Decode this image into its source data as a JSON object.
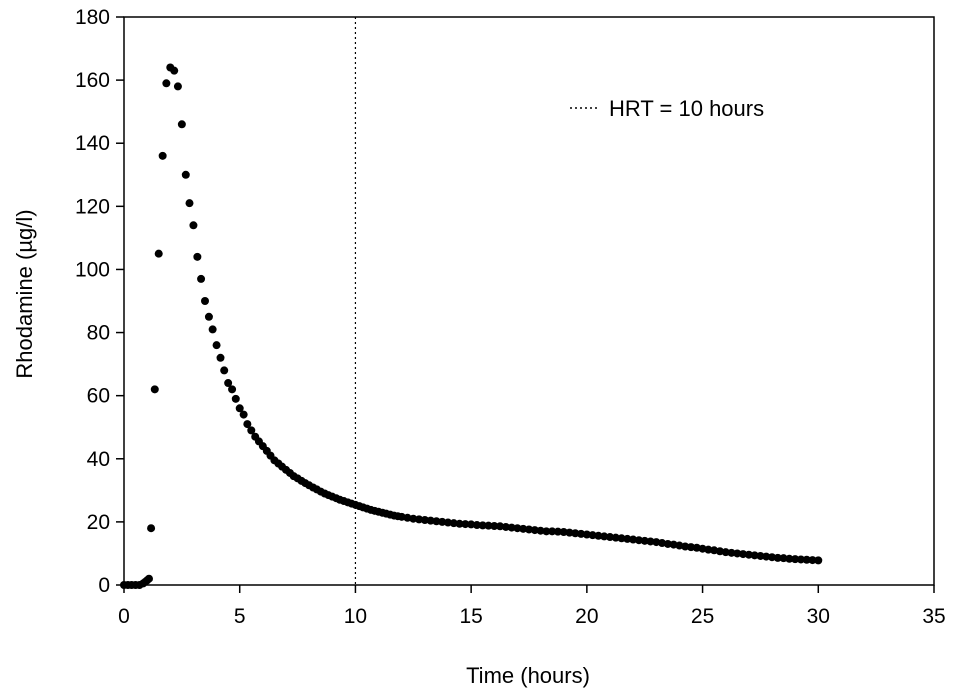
{
  "chart_data": {
    "type": "scatter",
    "xlabel": "Time (hours)",
    "ylabel": "Rhodamine (µg/l)",
    "xlim": [
      0,
      35
    ],
    "ylim": [
      0,
      180
    ],
    "xticks": [
      0,
      5,
      10,
      15,
      20,
      25,
      30,
      35
    ],
    "yticks": [
      0,
      20,
      40,
      60,
      80,
      100,
      120,
      140,
      160,
      180
    ],
    "grid": false,
    "legend": {
      "position": "top-right",
      "label": "HRT = 10 hours",
      "style": "dotted"
    },
    "reference_line": {
      "orientation": "vertical",
      "x": 10,
      "label": "HRT = 10 hours"
    },
    "marker_color": "#000000",
    "series": [
      {
        "x": [
          0.0,
          0.17,
          0.33,
          0.5,
          0.67,
          0.83,
          0.92,
          1.0,
          1.08,
          1.17,
          1.33,
          1.5,
          1.67,
          1.83,
          2.0,
          2.17,
          2.33,
          2.5,
          2.67,
          2.83,
          3.0,
          3.17,
          3.33,
          3.5,
          3.67,
          3.83,
          4.0,
          4.17,
          4.33,
          4.5,
          4.67,
          4.83,
          5.0,
          5.17,
          5.33,
          5.5,
          5.67,
          5.83,
          6.0,
          6.17,
          6.33,
          6.5,
          6.67,
          6.83,
          7.0,
          7.17,
          7.33,
          7.5,
          7.67,
          7.83,
          8.0,
          8.17,
          8.33,
          8.5,
          8.67,
          8.83,
          9.0,
          9.17,
          9.33,
          9.5,
          9.67,
          9.83,
          10.0,
          10.17,
          10.33,
          10.5,
          10.67,
          10.83,
          11.0,
          11.17,
          11.33,
          11.5,
          11.67,
          11.83,
          12.0,
          12.25,
          12.5,
          12.75,
          13.0,
          13.25,
          13.5,
          13.75,
          14.0,
          14.25,
          14.5,
          14.75,
          15.0,
          15.25,
          15.5,
          15.75,
          16.0,
          16.25,
          16.5,
          16.75,
          17.0,
          17.25,
          17.5,
          17.75,
          18.0,
          18.25,
          18.5,
          18.75,
          19.0,
          19.25,
          19.5,
          19.75,
          20.0,
          20.25,
          20.5,
          20.75,
          21.0,
          21.25,
          21.5,
          21.75,
          22.0,
          22.25,
          22.5,
          22.75,
          23.0,
          23.25,
          23.5,
          23.75,
          24.0,
          24.25,
          24.5,
          24.75,
          25.0,
          25.25,
          25.5,
          25.75,
          26.0,
          26.25,
          26.5,
          26.75,
          27.0,
          27.25,
          27.5,
          27.75,
          28.0,
          28.25,
          28.5,
          28.75,
          29.0,
          29.25,
          29.5,
          29.75,
          30.0
        ],
        "y": [
          0,
          0,
          0,
          0,
          0,
          0.5,
          1,
          1.5,
          2,
          18,
          62,
          105,
          136,
          159,
          164,
          163,
          158,
          146,
          130,
          121,
          114,
          104,
          97,
          90,
          85,
          81,
          76,
          72,
          68,
          64,
          62,
          59,
          56,
          54,
          51,
          49,
          47,
          45.5,
          44,
          42.5,
          41,
          39.5,
          38.5,
          37.5,
          36.5,
          35.5,
          34.5,
          33.8,
          33,
          32.3,
          31.6,
          30.9,
          30.3,
          29.6,
          29,
          28.5,
          28,
          27.5,
          27,
          26.6,
          26.2,
          25.8,
          25.4,
          25,
          24.6,
          24.2,
          23.8,
          23.5,
          23.2,
          22.9,
          22.6,
          22.3,
          22,
          21.8,
          21.6,
          21.3,
          21,
          20.8,
          20.6,
          20.4,
          20.2,
          20,
          19.8,
          19.6,
          19.4,
          19.3,
          19.2,
          19,
          18.9,
          18.8,
          18.7,
          18.6,
          18.4,
          18.2,
          18,
          17.8,
          17.6,
          17.4,
          17.2,
          17,
          17,
          16.9,
          16.8,
          16.6,
          16.4,
          16.2,
          16,
          15.8,
          15.6,
          15.4,
          15.2,
          15,
          14.8,
          14.6,
          14.4,
          14.2,
          14,
          13.8,
          13.6,
          13.3,
          13,
          12.8,
          12.5,
          12.2,
          12,
          11.8,
          11.5,
          11.2,
          11,
          10.7,
          10.4,
          10.2,
          10,
          9.8,
          9.6,
          9.4,
          9.2,
          9,
          8.8,
          8.6,
          8.5,
          8.3,
          8.2,
          8.1,
          8,
          7.9,
          7.8
        ]
      }
    ]
  }
}
